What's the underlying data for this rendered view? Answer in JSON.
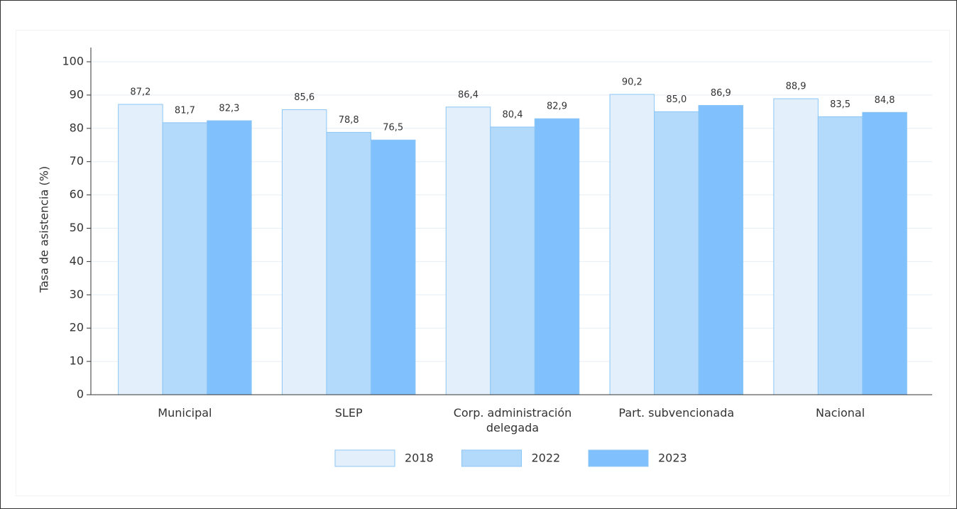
{
  "chart_data": {
    "type": "bar",
    "y_label": "Tasa de asistencia (%)",
    "categories": [
      "Municipal",
      "SLEP",
      "Corp. administración delegada",
      "Part. subvencionada",
      "Nacional"
    ],
    "series": [
      {
        "name": "2018",
        "color": "#e3f0fc",
        "values": [
          87.2,
          85.6,
          86.4,
          90.2,
          88.9
        ],
        "value_labels": [
          "87,2",
          "85,6",
          "86,4",
          "90,2",
          "88,9"
        ]
      },
      {
        "name": "2022",
        "color": "#b3d9fb",
        "values": [
          81.7,
          78.8,
          80.4,
          85.0,
          83.5
        ],
        "value_labels": [
          "81,7",
          "78,8",
          "80,4",
          "85,0",
          "83,5"
        ]
      },
      {
        "name": "2023",
        "color": "#80c0fc",
        "values": [
          82.3,
          76.5,
          82.9,
          86.9,
          84.8
        ],
        "value_labels": [
          "82,3",
          "76,5",
          "82,9",
          "86,9",
          "84,8"
        ]
      }
    ],
    "ylim": [
      0,
      100
    ],
    "yticks": [
      0,
      10,
      20,
      30,
      40,
      50,
      60,
      70,
      80,
      90,
      100
    ],
    "grid": true,
    "legend": "bottom"
  }
}
